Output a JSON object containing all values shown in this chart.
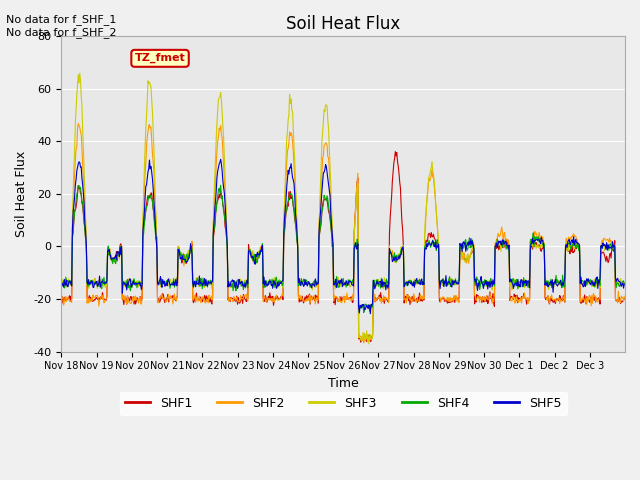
{
  "title": "Soil Heat Flux",
  "ylabel": "Soil Heat Flux",
  "xlabel": "Time",
  "ylim": [
    -40,
    80
  ],
  "background_color": "#f0f0f0",
  "plot_bg_color": "#e8e8e8",
  "annotation_text": "No data for f_SHF_1\nNo data for f_SHF_2",
  "legend_box_label": "TZ_fmet",
  "legend_box_color": "#ffffc0",
  "legend_box_border": "#cc0000",
  "series_colors": {
    "SHF1": "#cc0000",
    "SHF2": "#ff9900",
    "SHF3": "#cccc00",
    "SHF4": "#00aa00",
    "SHF5": "#0000cc"
  },
  "xtick_labels": [
    "Nov 18",
    "Nov 19",
    "Nov 20",
    "Nov 21",
    "Nov 22",
    "Nov 23",
    "Nov 24",
    "Nov 25",
    "Nov 26",
    "Nov 27",
    "Nov 28",
    "Nov 29",
    "Nov 30",
    "Dec 1",
    "Dec 2",
    "Dec 3"
  ],
  "ytick_values": [
    -40,
    -20,
    0,
    20,
    40,
    60,
    80
  ],
  "n_days": 16,
  "n_per_day": 48,
  "shf3_day_peaks": [
    65,
    -5,
    63,
    -5,
    58,
    -5,
    55,
    54,
    31,
    -5,
    30,
    -5,
    0,
    0,
    0,
    0
  ],
  "shf2_day_peaks": [
    46,
    -5,
    46,
    -5,
    45,
    -5,
    43,
    40,
    35,
    -5,
    28,
    -5,
    5,
    5,
    4,
    3
  ],
  "shf1_day_peaks": [
    21,
    -5,
    20,
    -5,
    20,
    -5,
    19,
    18,
    34,
    35,
    4,
    -5,
    0,
    0,
    -2,
    -5
  ],
  "shf5_day_peaks": [
    32,
    -5,
    31,
    -5,
    32,
    -5,
    31,
    30,
    1,
    -5,
    1,
    1,
    2,
    3,
    2,
    0
  ],
  "shf4_day_peaks": [
    22,
    -5,
    20,
    -5,
    21,
    -5,
    20,
    19,
    1,
    -5,
    1,
    1,
    2,
    3,
    1,
    0
  ],
  "shf1_night": -20,
  "shf2_night": -20,
  "shf3_night": -14,
  "shf4_night": -14,
  "shf5_night": -14
}
